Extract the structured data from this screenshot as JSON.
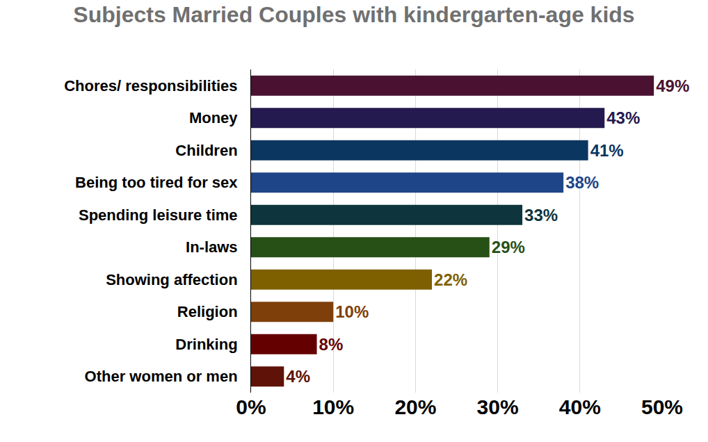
{
  "chart_data": {
    "type": "bar",
    "title": "Subjects Married Couples with kindergarten-age kids",
    "orientation": "horizontal",
    "categories": [
      "Chores/ responsibilities",
      "Money",
      "Children",
      "Being too tired for sex",
      "Spending leisure time",
      "In-laws",
      "Showing affection",
      "Religion",
      "Drinking",
      "Other women or men"
    ],
    "values": [
      49,
      43,
      41,
      38,
      33,
      29,
      22,
      10,
      8,
      4
    ],
    "value_labels": [
      "49%",
      "43%",
      "41%",
      "38%",
      "33%",
      "29%",
      "22%",
      "10%",
      "8%",
      "4%"
    ],
    "colors": [
      "#4a1230",
      "#241a4f",
      "#0b365f",
      "#1d4587",
      "#0e353d",
      "#275016",
      "#7e6000",
      "#7f3f0a",
      "#650000",
      "#5e1208"
    ],
    "xlim": [
      0,
      50
    ],
    "xticks": [
      {
        "value": 0,
        "label": "0%"
      },
      {
        "value": 10,
        "label": "10%"
      },
      {
        "value": 20,
        "label": "20%"
      },
      {
        "value": 30,
        "label": "30%"
      },
      {
        "value": 40,
        "label": "40%"
      },
      {
        "value": 50,
        "label": "50%"
      }
    ],
    "grid": true,
    "data_labels": true
  }
}
